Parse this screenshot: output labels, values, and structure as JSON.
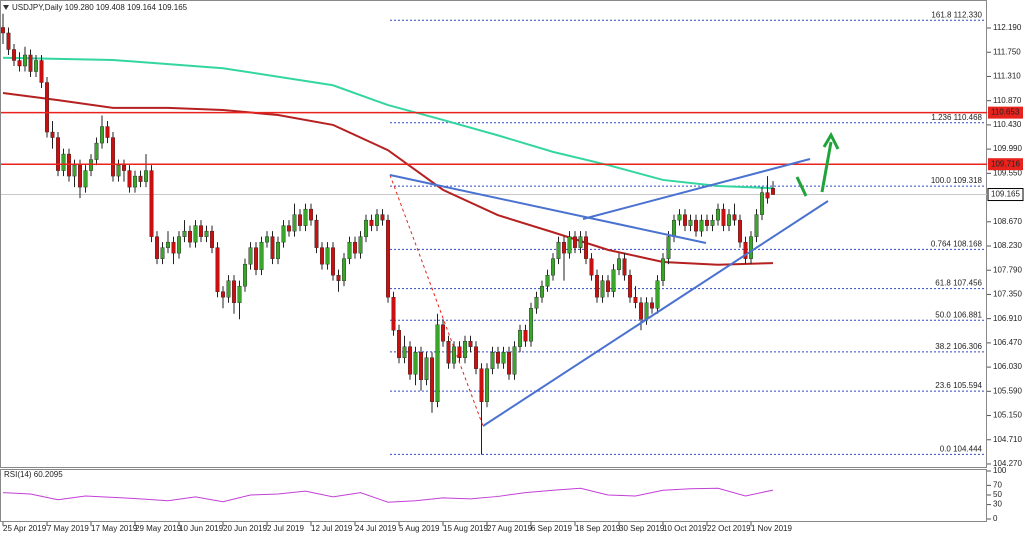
{
  "chart_data": {
    "type": "candlestick",
    "title": "USDJPY,Daily 109.280 109.408 109.164 109.165",
    "up_color": "#3aa52a",
    "down_color": "#c81010",
    "ylim": [
      104.197,
      112.699
    ],
    "yticks": [
      {
        "value": 112.19,
        "label": "112.190"
      },
      {
        "value": 111.75,
        "label": "111.750"
      },
      {
        "value": 111.31,
        "label": "111.310"
      },
      {
        "value": 110.87,
        "label": "110.870"
      },
      {
        "value": 110.43,
        "label": "110.430"
      },
      {
        "value": 109.99,
        "label": "109.990"
      },
      {
        "value": 109.55,
        "label": "109.550"
      },
      {
        "value": 108.67,
        "label": "108.670"
      },
      {
        "value": 108.23,
        "label": "108.230"
      },
      {
        "value": 107.79,
        "label": "107.790"
      },
      {
        "value": 107.35,
        "label": "107.350"
      },
      {
        "value": 106.91,
        "label": "106.910"
      },
      {
        "value": 106.47,
        "label": "106.470"
      },
      {
        "value": 106.03,
        "label": "106.030"
      },
      {
        "value": 105.59,
        "label": "105.590"
      },
      {
        "value": 105.15,
        "label": "105.150"
      },
      {
        "value": 104.71,
        "label": "104.710"
      },
      {
        "value": 104.27,
        "label": "104.270"
      }
    ],
    "categories": [
      "25 Apr 2019",
      null,
      null,
      null,
      null,
      null,
      null,
      null,
      "7 May 2019",
      null,
      null,
      null,
      null,
      null,
      null,
      null,
      "17 May 2019",
      null,
      null,
      null,
      null,
      null,
      null,
      null,
      "29 May 2019",
      null,
      null,
      null,
      null,
      null,
      null,
      null,
      "10 Jun 2019",
      null,
      null,
      null,
      null,
      null,
      null,
      null,
      "20 Jun 2019",
      null,
      null,
      null,
      null,
      null,
      null,
      null,
      "2 Jul 2019",
      null,
      null,
      null,
      null,
      null,
      null,
      null,
      "12 Jul 2019",
      null,
      null,
      null,
      null,
      null,
      null,
      null,
      "24 Jul 2019",
      null,
      null,
      null,
      null,
      null,
      null,
      null,
      "5 Aug 2019",
      null,
      null,
      null,
      null,
      null,
      null,
      null,
      "15 Aug 2019",
      null,
      null,
      null,
      null,
      null,
      null,
      null,
      "27 Aug 2019",
      null,
      null,
      null,
      null,
      null,
      null,
      null,
      "6 Sep 2019",
      null,
      null,
      null,
      null,
      null,
      null,
      null,
      "18 Sep 2019",
      null,
      null,
      null,
      null,
      null,
      null,
      null,
      "30 Sep 2019",
      null,
      null,
      null,
      null,
      null,
      null,
      null,
      "10 Oct 2019",
      null,
      null,
      null,
      null,
      null,
      null,
      null,
      "22 Oct 2019",
      null,
      null,
      null,
      null,
      null,
      null,
      null,
      "1 Nov 2019",
      null,
      null,
      null,
      null
    ],
    "ohlc": [
      [
        112.2,
        112.45,
        111.9,
        112.1
      ],
      [
        112.1,
        112.2,
        111.7,
        111.8
      ],
      [
        111.8,
        111.9,
        111.5,
        111.6
      ],
      [
        111.6,
        111.75,
        111.4,
        111.5
      ],
      [
        111.5,
        111.85,
        111.4,
        111.7
      ],
      [
        111.7,
        111.8,
        111.3,
        111.4
      ],
      [
        111.4,
        111.7,
        111.3,
        111.6
      ],
      [
        111.6,
        111.7,
        111.1,
        111.2
      ],
      [
        111.2,
        111.3,
        110.2,
        110.3
      ],
      [
        110.3,
        110.5,
        110.0,
        110.2
      ],
      [
        110.2,
        110.3,
        109.5,
        109.6
      ],
      [
        109.6,
        110.0,
        109.5,
        109.9
      ],
      [
        109.9,
        110.0,
        109.4,
        109.5
      ],
      [
        109.5,
        109.8,
        109.3,
        109.7
      ],
      [
        109.7,
        109.8,
        109.1,
        109.3
      ],
      [
        109.3,
        109.7,
        109.2,
        109.6
      ],
      [
        109.6,
        109.9,
        109.5,
        109.8
      ],
      [
        109.8,
        110.2,
        109.7,
        110.1
      ],
      [
        110.1,
        110.6,
        110.0,
        110.4
      ],
      [
        110.4,
        110.5,
        110.1,
        110.2
      ],
      [
        110.2,
        110.3,
        109.4,
        109.5
      ],
      [
        109.5,
        109.8,
        109.4,
        109.7
      ],
      [
        109.7,
        109.8,
        109.4,
        109.6
      ],
      [
        109.6,
        109.7,
        109.2,
        109.3
      ],
      [
        109.3,
        109.6,
        109.2,
        109.5
      ],
      [
        109.5,
        109.6,
        109.3,
        109.4
      ],
      [
        109.4,
        109.9,
        109.3,
        109.6
      ],
      [
        109.6,
        109.7,
        108.3,
        108.4
      ],
      [
        108.4,
        108.5,
        107.9,
        108.0
      ],
      [
        108.0,
        108.3,
        107.9,
        108.2
      ],
      [
        108.2,
        108.5,
        108.1,
        108.3
      ],
      [
        108.3,
        108.4,
        107.9,
        108.1
      ],
      [
        108.1,
        108.5,
        108.0,
        108.4
      ],
      [
        108.4,
        108.7,
        108.3,
        108.5
      ],
      [
        108.5,
        108.6,
        108.2,
        108.3
      ],
      [
        108.3,
        108.7,
        108.2,
        108.6
      ],
      [
        108.6,
        108.7,
        108.3,
        108.4
      ],
      [
        108.4,
        108.6,
        108.3,
        108.5
      ],
      [
        108.5,
        108.6,
        108.1,
        108.2
      ],
      [
        108.2,
        108.3,
        107.3,
        107.4
      ],
      [
        107.4,
        107.5,
        107.1,
        107.3
      ],
      [
        107.3,
        107.7,
        107.2,
        107.6
      ],
      [
        107.6,
        107.7,
        107.0,
        107.2
      ],
      [
        107.2,
        107.6,
        106.9,
        107.5
      ],
      [
        107.5,
        108.0,
        107.4,
        107.9
      ],
      [
        107.9,
        108.3,
        107.8,
        108.2
      ],
      [
        108.2,
        108.3,
        107.7,
        107.8
      ],
      [
        107.8,
        108.4,
        107.7,
        108.3
      ],
      [
        108.3,
        108.5,
        108.2,
        108.4
      ],
      [
        108.4,
        108.5,
        107.9,
        108.0
      ],
      [
        108.0,
        108.4,
        107.9,
        108.3
      ],
      [
        108.3,
        108.7,
        108.2,
        108.6
      ],
      [
        108.6,
        108.7,
        108.4,
        108.5
      ],
      [
        108.5,
        109.0,
        108.4,
        108.8
      ],
      [
        108.8,
        108.9,
        108.5,
        108.6
      ],
      [
        108.6,
        109.0,
        108.5,
        108.9
      ],
      [
        108.9,
        109.0,
        108.6,
        108.7
      ],
      [
        108.7,
        108.8,
        108.1,
        108.2
      ],
      [
        108.2,
        108.3,
        107.8,
        107.9
      ],
      [
        107.9,
        108.3,
        107.8,
        108.2
      ],
      [
        108.2,
        108.3,
        107.6,
        107.7
      ],
      [
        107.7,
        107.8,
        107.4,
        107.6
      ],
      [
        107.6,
        108.1,
        107.5,
        108.0
      ],
      [
        108.0,
        108.4,
        107.9,
        108.3
      ],
      [
        108.3,
        108.4,
        108.0,
        108.1
      ],
      [
        108.1,
        108.5,
        108.0,
        108.4
      ],
      [
        108.4,
        108.8,
        108.3,
        108.7
      ],
      [
        108.7,
        108.8,
        108.5,
        108.6
      ],
      [
        108.6,
        108.9,
        108.5,
        108.8
      ],
      [
        108.8,
        108.9,
        108.6,
        108.7
      ],
      [
        108.7,
        108.8,
        107.2,
        107.3
      ],
      [
        107.3,
        107.4,
        106.6,
        106.7
      ],
      [
        106.7,
        106.8,
        106.1,
        106.2
      ],
      [
        106.2,
        106.6,
        106.1,
        106.4
      ],
      [
        106.4,
        106.5,
        105.8,
        105.9
      ],
      [
        105.9,
        106.4,
        105.7,
        106.3
      ],
      [
        106.3,
        106.4,
        105.6,
        105.8
      ],
      [
        105.8,
        106.3,
        105.7,
        106.2
      ],
      [
        106.2,
        106.3,
        105.2,
        105.4
      ],
      [
        105.4,
        107.0,
        105.3,
        106.8
      ],
      [
        106.8,
        106.9,
        106.4,
        106.5
      ],
      [
        106.5,
        106.6,
        106.0,
        106.1
      ],
      [
        106.1,
        106.5,
        106.0,
        106.4
      ],
      [
        106.4,
        106.5,
        106.1,
        106.2
      ],
      [
        106.2,
        106.6,
        106.1,
        106.5
      ],
      [
        106.5,
        106.6,
        106.3,
        106.4
      ],
      [
        106.4,
        106.5,
        105.9,
        106.0
      ],
      [
        106.0,
        106.1,
        104.44,
        105.4
      ],
      [
        105.4,
        106.1,
        105.3,
        106.0
      ],
      [
        106.0,
        106.4,
        105.9,
        106.3
      ],
      [
        106.3,
        106.4,
        106.0,
        106.1
      ],
      [
        106.1,
        106.4,
        106.0,
        106.3
      ],
      [
        106.3,
        106.4,
        105.8,
        105.9
      ],
      [
        105.9,
        106.5,
        105.8,
        106.4
      ],
      [
        106.4,
        106.8,
        106.3,
        106.7
      ],
      [
        106.7,
        106.8,
        106.4,
        106.5
      ],
      [
        106.5,
        107.2,
        106.4,
        107.1
      ],
      [
        107.1,
        107.4,
        107.0,
        107.3
      ],
      [
        107.3,
        107.6,
        107.2,
        107.5
      ],
      [
        107.5,
        107.8,
        107.4,
        107.7
      ],
      [
        107.7,
        108.1,
        107.6,
        108.0
      ],
      [
        108.0,
        108.4,
        107.9,
        108.3
      ],
      [
        108.3,
        108.4,
        107.6,
        108.1
      ],
      [
        108.1,
        108.5,
        108.0,
        108.4
      ],
      [
        108.4,
        108.5,
        108.1,
        108.2
      ],
      [
        108.2,
        108.5,
        108.1,
        108.4
      ],
      [
        108.4,
        108.5,
        107.9,
        108.0
      ],
      [
        108.0,
        108.1,
        107.6,
        107.7
      ],
      [
        107.7,
        107.8,
        107.2,
        107.3
      ],
      [
        107.3,
        107.7,
        107.2,
        107.6
      ],
      [
        107.6,
        107.7,
        107.3,
        107.4
      ],
      [
        107.4,
        107.9,
        107.3,
        107.8
      ],
      [
        107.8,
        108.1,
        107.7,
        108.0
      ],
      [
        108.0,
        108.1,
        107.6,
        107.7
      ],
      [
        107.7,
        107.8,
        107.2,
        107.3
      ],
      [
        107.3,
        107.5,
        107.1,
        107.2
      ],
      [
        107.2,
        107.3,
        106.7,
        106.9
      ],
      [
        106.9,
        107.3,
        106.8,
        107.2
      ],
      [
        107.2,
        107.3,
        107.0,
        107.1
      ],
      [
        107.1,
        107.7,
        107.0,
        107.6
      ],
      [
        107.6,
        108.1,
        107.5,
        108.0
      ],
      [
        108.0,
        108.5,
        107.9,
        108.4
      ],
      [
        108.4,
        108.8,
        108.3,
        108.7
      ],
      [
        108.7,
        108.9,
        108.6,
        108.8
      ],
      [
        108.8,
        108.9,
        108.5,
        108.6
      ],
      [
        108.6,
        108.8,
        108.5,
        108.7
      ],
      [
        108.7,
        108.8,
        108.4,
        108.5
      ],
      [
        108.5,
        108.8,
        108.4,
        108.7
      ],
      [
        108.7,
        108.8,
        108.5,
        108.6
      ],
      [
        108.6,
        108.8,
        108.5,
        108.7
      ],
      [
        108.7,
        109.0,
        108.6,
        108.9
      ],
      [
        108.9,
        109.0,
        108.5,
        108.6
      ],
      [
        108.6,
        108.9,
        108.5,
        108.8
      ],
      [
        108.8,
        109.0,
        108.6,
        108.7
      ],
      [
        108.7,
        108.8,
        108.2,
        108.3
      ],
      [
        108.3,
        108.4,
        107.9,
        108.0
      ],
      [
        108.0,
        108.5,
        107.9,
        108.4
      ],
      [
        108.4,
        108.9,
        108.3,
        108.8
      ],
      [
        108.8,
        109.3,
        108.7,
        109.2
      ],
      [
        109.2,
        109.5,
        109.0,
        109.1
      ],
      [
        109.28,
        109.408,
        109.164,
        109.165
      ]
    ],
    "moving_averages": [
      {
        "color": "#33d6a0",
        "points": [
          [
            0,
            111.65
          ],
          [
            20,
            111.61
          ],
          [
            40,
            111.46
          ],
          [
            60,
            111.15
          ],
          [
            70,
            110.79
          ],
          [
            80,
            110.52
          ],
          [
            90,
            110.24
          ],
          [
            100,
            109.94
          ],
          [
            110,
            109.7
          ],
          [
            120,
            109.43
          ],
          [
            130,
            109.32
          ],
          [
            140,
            109.28
          ]
        ]
      },
      {
        "color": "#b52020",
        "points": [
          [
            0,
            111.01
          ],
          [
            10,
            110.88
          ],
          [
            20,
            110.74
          ],
          [
            30,
            110.74
          ],
          [
            40,
            110.7
          ],
          [
            50,
            110.61
          ],
          [
            60,
            110.43
          ],
          [
            70,
            109.97
          ],
          [
            80,
            109.25
          ],
          [
            90,
            108.79
          ],
          [
            100,
            108.48
          ],
          [
            110,
            108.16
          ],
          [
            120,
            107.94
          ],
          [
            130,
            107.89
          ],
          [
            140,
            107.92
          ]
        ]
      }
    ],
    "fib_levels": [
      {
        "value": 112.33,
        "label": "161.8 112.330"
      },
      {
        "value": 110.468,
        "label": "1.236 110.468"
      },
      {
        "value": 109.318,
        "label": "100.0 109.318"
      },
      {
        "value": 108.168,
        "label": "0.764 108.168"
      },
      {
        "value": 107.456,
        "label": "61.8 107.456"
      },
      {
        "value": 106.881,
        "label": "50.0 106.881"
      },
      {
        "value": 106.306,
        "label": "38.2 106.306"
      },
      {
        "value": 105.594,
        "label": "23.6 105.594"
      },
      {
        "value": 104.444,
        "label": "0.0 104.444"
      }
    ],
    "levels": [
      {
        "value": 110.653,
        "label": "110.653",
        "color": "#e8231e"
      },
      {
        "value": 109.716,
        "label": "109.716",
        "color": "#e8231e"
      }
    ],
    "current_price": {
      "value": 109.165,
      "label": "109.165"
    },
    "rsi": {
      "label": "RSI(14) 60.2095",
      "color": "#c23fd6",
      "ylim": [
        0,
        100
      ],
      "yticks": [
        100,
        70,
        50,
        30,
        0
      ],
      "points": [
        [
          0,
          55
        ],
        [
          5,
          52
        ],
        [
          10,
          40
        ],
        [
          15,
          48
        ],
        [
          20,
          45
        ],
        [
          25,
          42
        ],
        [
          30,
          38
        ],
        [
          35,
          46
        ],
        [
          40,
          36
        ],
        [
          45,
          50
        ],
        [
          50,
          52
        ],
        [
          55,
          58
        ],
        [
          60,
          46
        ],
        [
          65,
          55
        ],
        [
          70,
          35
        ],
        [
          75,
          38
        ],
        [
          80,
          44
        ],
        [
          85,
          42
        ],
        [
          90,
          47
        ],
        [
          95,
          55
        ],
        [
          100,
          60
        ],
        [
          105,
          64
        ],
        [
          110,
          50
        ],
        [
          115,
          48
        ],
        [
          120,
          60
        ],
        [
          125,
          63
        ],
        [
          130,
          64
        ],
        [
          135,
          48
        ],
        [
          140,
          60.2095
        ]
      ]
    }
  }
}
